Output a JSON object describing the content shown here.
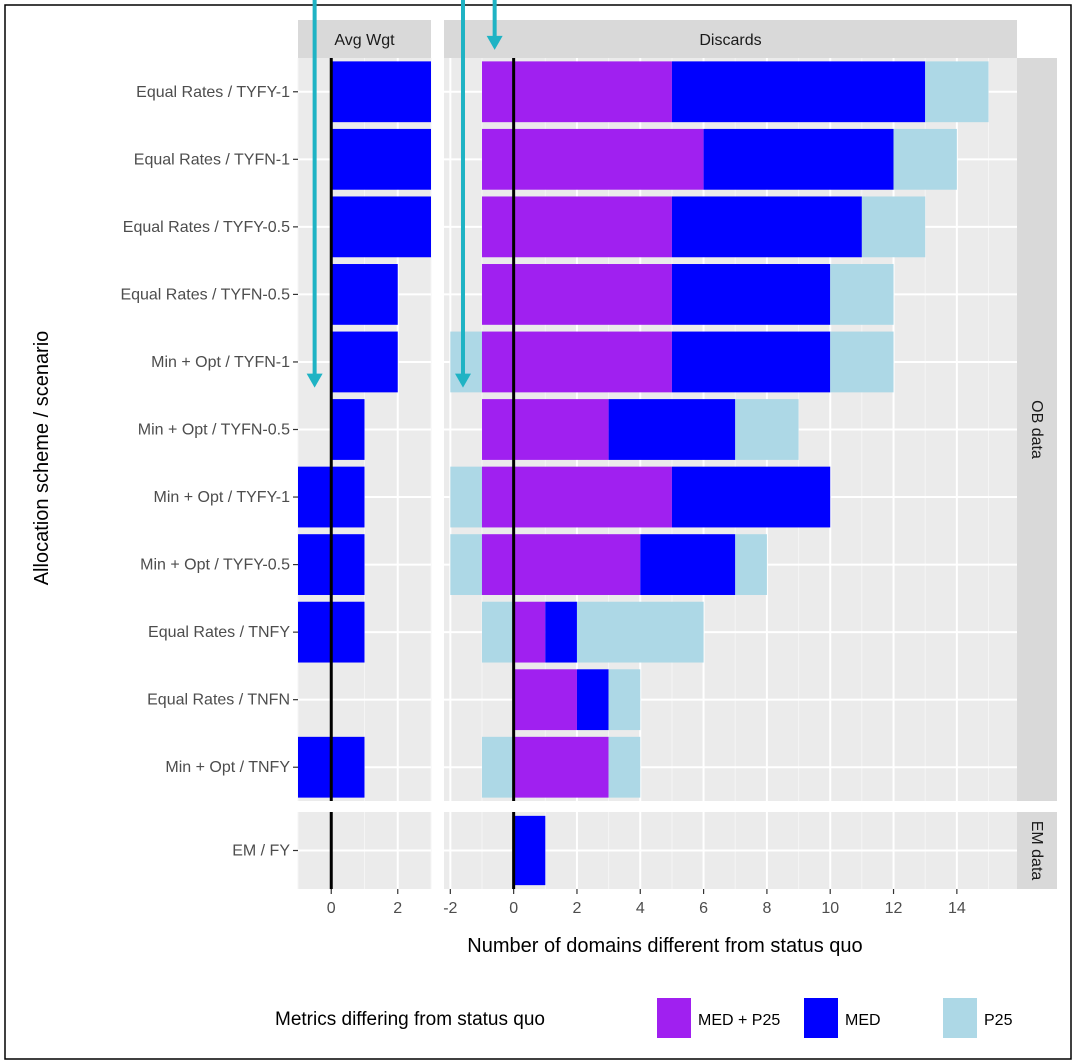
{
  "chart_data": {
    "type": "bar",
    "orientation": "horizontal",
    "stacked": true,
    "xlabel": "Number of domains different from status quo",
    "ylabel": "Allocation scheme / scenario",
    "legend": {
      "title": "Metrics differing from status quo",
      "position": "bottom",
      "entries": [
        {
          "label": "MED + P25",
          "color": "#a020f0"
        },
        {
          "label": "MED",
          "color": "#0000ff"
        },
        {
          "label": "P25",
          "color": "#add8e6"
        }
      ]
    },
    "facet_columns": [
      {
        "id": "avg",
        "label": "Avg Wgt",
        "xlim": [
          -1,
          3
        ],
        "ticks": [
          0,
          2
        ]
      },
      {
        "id": "dis",
        "label": "Discards",
        "xlim": [
          -2.2,
          15.9
        ],
        "ticks": [
          -2,
          0,
          2,
          4,
          6,
          8,
          10,
          12,
          14
        ]
      }
    ],
    "facet_rows": [
      {
        "id": "ob",
        "label": "OB data",
        "categories": [
          "Equal Rates / TYFY-1",
          "Equal Rates / TYFN-1",
          "Equal Rates / TYFY-0.5",
          "Equal Rates / TYFN-0.5",
          "Min + Opt / TYFN-1",
          "Min + Opt / TYFN-0.5",
          "Min + Opt / TYFY-1",
          "Min + Opt / TYFY-0.5",
          "Equal Rates / TNFY",
          "Equal Rates / TNFN",
          "Min + Opt / TNFY"
        ]
      },
      {
        "id": "em",
        "label": "EM data",
        "categories": [
          "EM / FY"
        ]
      }
    ],
    "bars": [
      {
        "facet_row": "ob",
        "facet_col": "avg",
        "category": "Equal Rates / TYFY-1",
        "segments": [
          {
            "metric": "MED",
            "from": 0,
            "to": 3
          }
        ]
      },
      {
        "facet_row": "ob",
        "facet_col": "avg",
        "category": "Equal Rates / TYFN-1",
        "segments": [
          {
            "metric": "MED",
            "from": 0,
            "to": 3
          }
        ]
      },
      {
        "facet_row": "ob",
        "facet_col": "avg",
        "category": "Equal Rates / TYFY-0.5",
        "segments": [
          {
            "metric": "MED",
            "from": 0,
            "to": 3
          }
        ]
      },
      {
        "facet_row": "ob",
        "facet_col": "avg",
        "category": "Equal Rates / TYFN-0.5",
        "segments": [
          {
            "metric": "MED",
            "from": 0,
            "to": 2
          }
        ]
      },
      {
        "facet_row": "ob",
        "facet_col": "avg",
        "category": "Min + Opt / TYFN-1",
        "segments": [
          {
            "metric": "MED",
            "from": 0,
            "to": 2
          }
        ]
      },
      {
        "facet_row": "ob",
        "facet_col": "avg",
        "category": "Min + Opt / TYFN-0.5",
        "segments": [
          {
            "metric": "MED",
            "from": 0,
            "to": 1
          }
        ]
      },
      {
        "facet_row": "ob",
        "facet_col": "avg",
        "category": "Min + Opt / TYFY-1",
        "segments": [
          {
            "metric": "MED",
            "from": -1,
            "to": 1
          }
        ]
      },
      {
        "facet_row": "ob",
        "facet_col": "avg",
        "category": "Min + Opt / TYFY-0.5",
        "segments": [
          {
            "metric": "MED",
            "from": -1,
            "to": 1
          }
        ]
      },
      {
        "facet_row": "ob",
        "facet_col": "avg",
        "category": "Equal Rates / TNFY",
        "segments": [
          {
            "metric": "MED",
            "from": -1,
            "to": 1
          }
        ]
      },
      {
        "facet_row": "ob",
        "facet_col": "avg",
        "category": "Min + Opt / TNFY",
        "segments": [
          {
            "metric": "MED",
            "from": -1,
            "to": 1
          }
        ]
      },
      {
        "facet_row": "ob",
        "facet_col": "dis",
        "category": "Equal Rates / TYFY-1",
        "segments": [
          {
            "metric": "MED + P25",
            "from": -1,
            "to": 5
          },
          {
            "metric": "MED",
            "from": 5,
            "to": 13
          },
          {
            "metric": "P25",
            "from": 13,
            "to": 15
          }
        ]
      },
      {
        "facet_row": "ob",
        "facet_col": "dis",
        "category": "Equal Rates / TYFN-1",
        "segments": [
          {
            "metric": "MED + P25",
            "from": -1,
            "to": 6
          },
          {
            "metric": "MED",
            "from": 6,
            "to": 12
          },
          {
            "metric": "P25",
            "from": 12,
            "to": 14
          }
        ]
      },
      {
        "facet_row": "ob",
        "facet_col": "dis",
        "category": "Equal Rates / TYFY-0.5",
        "segments": [
          {
            "metric": "MED + P25",
            "from": -1,
            "to": 5
          },
          {
            "metric": "MED",
            "from": 5,
            "to": 11
          },
          {
            "metric": "P25",
            "from": 11,
            "to": 13
          }
        ]
      },
      {
        "facet_row": "ob",
        "facet_col": "dis",
        "category": "Equal Rates / TYFN-0.5",
        "segments": [
          {
            "metric": "MED + P25",
            "from": -1,
            "to": 5
          },
          {
            "metric": "MED",
            "from": 5,
            "to": 10
          },
          {
            "metric": "P25",
            "from": 10,
            "to": 12
          }
        ]
      },
      {
        "facet_row": "ob",
        "facet_col": "dis",
        "category": "Min + Opt / TYFN-1",
        "segments": [
          {
            "metric": "P25",
            "from": -2,
            "to": -1
          },
          {
            "metric": "MED + P25",
            "from": -1,
            "to": 5
          },
          {
            "metric": "MED",
            "from": 5,
            "to": 10
          },
          {
            "metric": "P25",
            "from": 10,
            "to": 12
          }
        ]
      },
      {
        "facet_row": "ob",
        "facet_col": "dis",
        "category": "Min + Opt / TYFN-0.5",
        "segments": [
          {
            "metric": "MED + P25",
            "from": -1,
            "to": 3
          },
          {
            "metric": "MED",
            "from": 3,
            "to": 7
          },
          {
            "metric": "P25",
            "from": 7,
            "to": 9
          }
        ]
      },
      {
        "facet_row": "ob",
        "facet_col": "dis",
        "category": "Min + Opt / TYFY-1",
        "segments": [
          {
            "metric": "P25",
            "from": -2,
            "to": -1
          },
          {
            "metric": "MED + P25",
            "from": -1,
            "to": 5
          },
          {
            "metric": "MED",
            "from": 5,
            "to": 10
          }
        ]
      },
      {
        "facet_row": "ob",
        "facet_col": "dis",
        "category": "Min + Opt / TYFY-0.5",
        "segments": [
          {
            "metric": "P25",
            "from": -2,
            "to": -1
          },
          {
            "metric": "MED + P25",
            "from": -1,
            "to": 4
          },
          {
            "metric": "MED",
            "from": 4,
            "to": 7
          },
          {
            "metric": "P25",
            "from": 7,
            "to": 8
          }
        ]
      },
      {
        "facet_row": "ob",
        "facet_col": "dis",
        "category": "Equal Rates / TNFY",
        "segments": [
          {
            "metric": "P25",
            "from": -1,
            "to": 0
          },
          {
            "metric": "MED + P25",
            "from": 0,
            "to": 1
          },
          {
            "metric": "MED",
            "from": 1,
            "to": 2
          },
          {
            "metric": "P25",
            "from": 2,
            "to": 6
          }
        ]
      },
      {
        "facet_row": "ob",
        "facet_col": "dis",
        "category": "Equal Rates / TNFN",
        "segments": [
          {
            "metric": "MED + P25",
            "from": 0,
            "to": 2
          },
          {
            "metric": "MED",
            "from": 2,
            "to": 3
          },
          {
            "metric": "P25",
            "from": 3,
            "to": 4
          }
        ]
      },
      {
        "facet_row": "ob",
        "facet_col": "dis",
        "category": "Min + Opt / TNFY",
        "segments": [
          {
            "metric": "P25",
            "from": -1,
            "to": 0
          },
          {
            "metric": "MED + P25",
            "from": 0,
            "to": 3
          },
          {
            "metric": "P25",
            "from": 3,
            "to": 4
          }
        ]
      },
      {
        "facet_row": "em",
        "facet_col": "dis",
        "category": "EM / FY",
        "segments": [
          {
            "metric": "MED",
            "from": 0,
            "to": 1
          }
        ]
      }
    ],
    "reference_line": {
      "x": 0,
      "color": "#000000"
    },
    "arrows": {
      "color": "#1fb3c4",
      "items": [
        {
          "facet_col": "avg",
          "x": -0.5,
          "from_category": "top",
          "to_category": "Min + Opt / TYFN-0.5"
        },
        {
          "facet_col": "dis",
          "x": -1.6,
          "from_category": "top",
          "to_category": "Min + Opt / TYFN-0.5"
        },
        {
          "facet_col": "dis",
          "x": -0.6,
          "from_category": "top",
          "to_category": "Equal Rates / TYFY-1"
        }
      ]
    },
    "grid": true,
    "panel_background": "#ebebeb",
    "strip_background": "#d9d9d9"
  }
}
